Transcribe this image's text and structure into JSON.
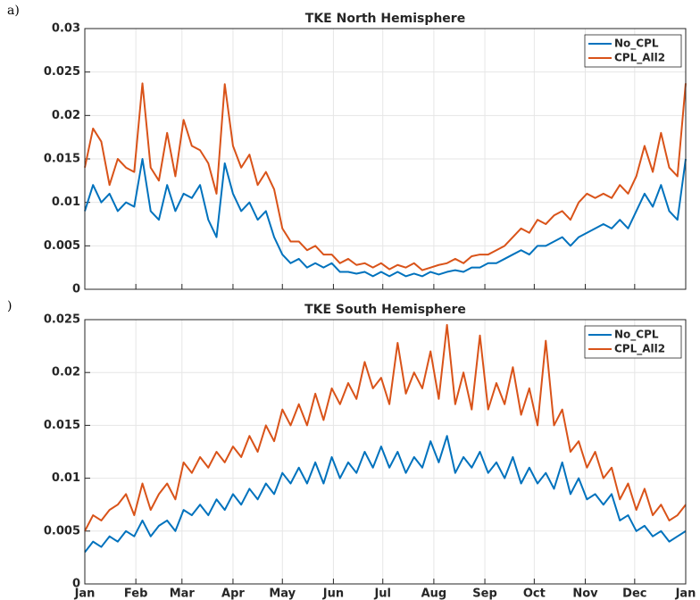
{
  "chart_data": [
    {
      "type": "line",
      "panel_label": "a)",
      "title": "TKE North Hemisphere",
      "x": [
        0,
        5,
        10,
        15,
        20,
        25,
        30,
        35,
        40,
        45,
        50,
        55,
        60,
        65,
        70,
        75,
        80,
        85,
        90,
        95,
        100,
        105,
        110,
        115,
        120,
        125,
        130,
        135,
        140,
        145,
        150,
        155,
        160,
        165,
        170,
        175,
        180,
        185,
        190,
        195,
        200,
        205,
        210,
        215,
        220,
        225,
        230,
        235,
        240,
        245,
        250,
        255,
        260,
        265,
        270,
        275,
        280,
        285,
        290,
        295,
        300,
        305,
        310,
        315,
        320,
        325,
        330,
        335,
        340,
        345,
        350,
        355,
        360,
        365
      ],
      "series": [
        {
          "name": "No_CPL",
          "color": "#0072bd",
          "values": [
            0.009,
            0.012,
            0.01,
            0.011,
            0.009,
            0.01,
            0.0095,
            0.015,
            0.009,
            0.008,
            0.012,
            0.009,
            0.011,
            0.0105,
            0.012,
            0.008,
            0.006,
            0.0145,
            0.011,
            0.009,
            0.01,
            0.008,
            0.009,
            0.006,
            0.004,
            0.003,
            0.0035,
            0.0025,
            0.003,
            0.0025,
            0.003,
            0.002,
            0.002,
            0.0018,
            0.002,
            0.0015,
            0.002,
            0.0015,
            0.002,
            0.0015,
            0.0018,
            0.0015,
            0.002,
            0.0017,
            0.002,
            0.0022,
            0.002,
            0.0025,
            0.0025,
            0.003,
            0.003,
            0.0035,
            0.004,
            0.0045,
            0.004,
            0.005,
            0.005,
            0.0055,
            0.006,
            0.005,
            0.006,
            0.0065,
            0.007,
            0.0075,
            0.007,
            0.008,
            0.007,
            0.009,
            0.011,
            0.0095,
            0.012,
            0.009,
            0.008,
            0.015
          ]
        },
        {
          "name": "CPL_All2",
          "color": "#d95319",
          "values": [
            0.014,
            0.0185,
            0.017,
            0.012,
            0.015,
            0.014,
            0.0135,
            0.0237,
            0.014,
            0.0125,
            0.018,
            0.013,
            0.0195,
            0.0165,
            0.016,
            0.0145,
            0.011,
            0.0236,
            0.0165,
            0.014,
            0.0155,
            0.012,
            0.0135,
            0.0115,
            0.007,
            0.0055,
            0.0055,
            0.0045,
            0.005,
            0.004,
            0.004,
            0.003,
            0.0035,
            0.0028,
            0.003,
            0.0025,
            0.003,
            0.0023,
            0.0028,
            0.0025,
            0.003,
            0.0022,
            0.0025,
            0.0028,
            0.003,
            0.0035,
            0.003,
            0.0038,
            0.004,
            0.004,
            0.0045,
            0.005,
            0.006,
            0.007,
            0.0065,
            0.008,
            0.0075,
            0.0085,
            0.009,
            0.008,
            0.01,
            0.011,
            0.0105,
            0.011,
            0.0105,
            0.012,
            0.011,
            0.013,
            0.0165,
            0.0135,
            0.018,
            0.014,
            0.013,
            0.0237
          ]
        }
      ],
      "xlim": [
        0,
        365
      ],
      "xticks": [
        0,
        31,
        59,
        90,
        120,
        151,
        181,
        212,
        243,
        273,
        304,
        334,
        365
      ],
      "ylim": [
        0,
        0.03
      ],
      "yticks": [
        0,
        0.005,
        0.01,
        0.015,
        0.02,
        0.025,
        0.03
      ],
      "grid": true,
      "legend": "upper right"
    },
    {
      "type": "line",
      "panel_label": ")",
      "title": "TKE South Hemisphere",
      "x": [
        0,
        5,
        10,
        15,
        20,
        25,
        30,
        35,
        40,
        45,
        50,
        55,
        60,
        65,
        70,
        75,
        80,
        85,
        90,
        95,
        100,
        105,
        110,
        115,
        120,
        125,
        130,
        135,
        140,
        145,
        150,
        155,
        160,
        165,
        170,
        175,
        180,
        185,
        190,
        195,
        200,
        205,
        210,
        215,
        220,
        225,
        230,
        235,
        240,
        245,
        250,
        255,
        260,
        265,
        270,
        275,
        280,
        285,
        290,
        295,
        300,
        305,
        310,
        315,
        320,
        325,
        330,
        335,
        340,
        345,
        350,
        355,
        360,
        365
      ],
      "series": [
        {
          "name": "No_CPL",
          "color": "#0072bd",
          "values": [
            0.003,
            0.004,
            0.0035,
            0.0045,
            0.004,
            0.005,
            0.0045,
            0.006,
            0.0045,
            0.0055,
            0.006,
            0.005,
            0.007,
            0.0065,
            0.0075,
            0.0065,
            0.008,
            0.007,
            0.0085,
            0.0075,
            0.009,
            0.008,
            0.0095,
            0.0085,
            0.0105,
            0.0095,
            0.011,
            0.0095,
            0.0115,
            0.0095,
            0.012,
            0.01,
            0.0115,
            0.0105,
            0.0125,
            0.011,
            0.013,
            0.011,
            0.0125,
            0.0105,
            0.012,
            0.011,
            0.0135,
            0.0115,
            0.014,
            0.0105,
            0.012,
            0.011,
            0.0125,
            0.0105,
            0.0115,
            0.01,
            0.012,
            0.0095,
            0.011,
            0.0095,
            0.0105,
            0.009,
            0.0115,
            0.0085,
            0.01,
            0.008,
            0.0085,
            0.0075,
            0.0085,
            0.006,
            0.0065,
            0.005,
            0.0055,
            0.0045,
            0.005,
            0.004,
            0.0045,
            0.005
          ]
        },
        {
          "name": "CPL_All2",
          "color": "#d95319",
          "values": [
            0.005,
            0.0065,
            0.006,
            0.007,
            0.0075,
            0.0085,
            0.0065,
            0.0095,
            0.007,
            0.0085,
            0.0095,
            0.008,
            0.0115,
            0.0105,
            0.012,
            0.011,
            0.0125,
            0.0115,
            0.013,
            0.012,
            0.014,
            0.0125,
            0.015,
            0.0135,
            0.0165,
            0.015,
            0.017,
            0.015,
            0.018,
            0.0155,
            0.0185,
            0.017,
            0.019,
            0.0175,
            0.021,
            0.0185,
            0.0195,
            0.017,
            0.0228,
            0.018,
            0.02,
            0.0185,
            0.022,
            0.0175,
            0.0245,
            0.017,
            0.02,
            0.0165,
            0.0235,
            0.0165,
            0.019,
            0.017,
            0.0205,
            0.016,
            0.0185,
            0.015,
            0.023,
            0.015,
            0.0165,
            0.0125,
            0.0135,
            0.011,
            0.0125,
            0.01,
            0.011,
            0.008,
            0.0095,
            0.007,
            0.009,
            0.0065,
            0.0075,
            0.006,
            0.0065,
            0.0075
          ]
        }
      ],
      "xlim": [
        0,
        365
      ],
      "xticks": [
        {
          "value": 0,
          "label": "Jan"
        },
        {
          "value": 31,
          "label": "Feb"
        },
        {
          "value": 59,
          "label": "Mar"
        },
        {
          "value": 90,
          "label": "Apr"
        },
        {
          "value": 120,
          "label": "May"
        },
        {
          "value": 151,
          "label": "Jun"
        },
        {
          "value": 181,
          "label": "Jul"
        },
        {
          "value": 212,
          "label": "Aug"
        },
        {
          "value": 243,
          "label": "Sep"
        },
        {
          "value": 273,
          "label": "Oct"
        },
        {
          "value": 304,
          "label": "Nov"
        },
        {
          "value": 334,
          "label": "Dec"
        },
        {
          "value": 365,
          "label": "Jan"
        }
      ],
      "ylim": [
        0,
        0.025
      ],
      "yticks": [
        0,
        0.005,
        0.01,
        0.015,
        0.02,
        0.025
      ],
      "grid": true,
      "legend": "upper right"
    }
  ]
}
